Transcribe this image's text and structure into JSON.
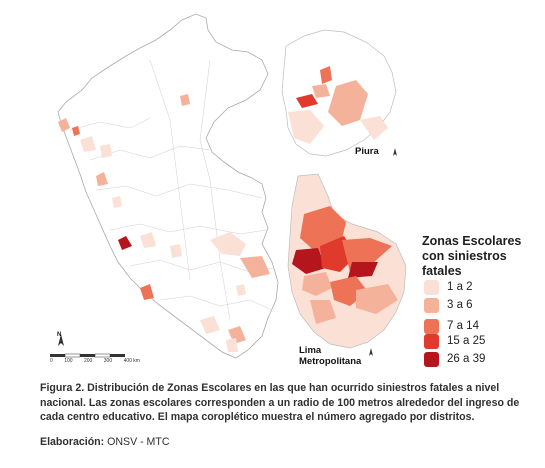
{
  "legend": {
    "title": "Zonas Escolares con siniestros fatales",
    "classes": [
      {
        "label": "1 a 2",
        "color": "#fbe0d6"
      },
      {
        "label": "3 a 6",
        "color": "#f5b29a"
      },
      {
        "label": "7 a 14",
        "color": "#ee7255"
      },
      {
        "label": "15 a 25",
        "color": "#e03a2c"
      },
      {
        "label": "26 a 39",
        "color": "#b5161e"
      }
    ]
  },
  "insets": {
    "piura": "Piura",
    "lima": "Lima Metropolitana"
  },
  "scale_bar": {
    "labels": [
      "0",
      "100",
      "200",
      "300",
      "400 km"
    ]
  },
  "north_arrow": "N",
  "caption": {
    "figure_label": "Figura 2.",
    "text": "Distribución de Zonas Escolares en las que han ocurrido siniestros fatales a nivel nacional. Las zonas escolares corresponden a un radio de 100 metros alrededor del ingreso de cada centro educativo. El mapa coroplético muestra el número agregado por distritos."
  },
  "credit": {
    "label": "Elaboración:",
    "value": "ONSV - MTC"
  }
}
